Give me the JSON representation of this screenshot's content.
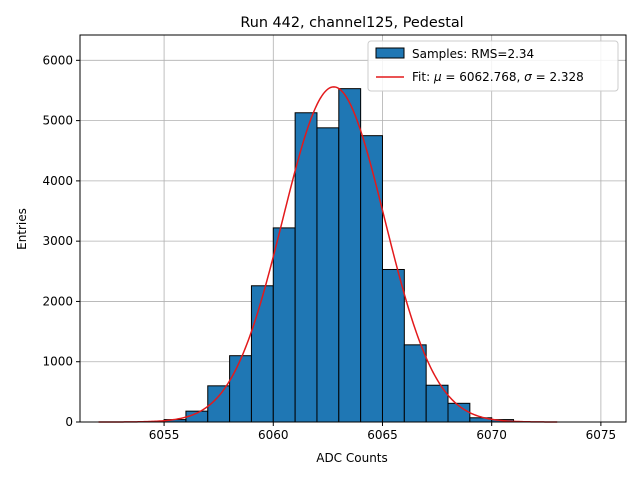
{
  "chart_data": {
    "type": "bar",
    "title": "Run 442, channel125, Pedestal",
    "xlabel": "ADC Counts",
    "ylabel": "Entries",
    "xlim": [
      6051.15,
      6076.15
    ],
    "ylim": [
      0,
      6420
    ],
    "xticks": [
      6055,
      6060,
      6065,
      6070,
      6075
    ],
    "yticks": [
      0,
      1000,
      2000,
      3000,
      4000,
      5000,
      6000
    ],
    "grid": true,
    "legend_position": "top-right",
    "bar_width": 1,
    "bins": [
      {
        "left": 6055,
        "value": 40
      },
      {
        "left": 6056,
        "value": 180
      },
      {
        "left": 6057,
        "value": 600
      },
      {
        "left": 6058,
        "value": 1100
      },
      {
        "left": 6059,
        "value": 2260
      },
      {
        "left": 6060,
        "value": 3220
      },
      {
        "left": 6061,
        "value": 5130
      },
      {
        "left": 6062,
        "value": 4880
      },
      {
        "left": 6063,
        "value": 5530
      },
      {
        "left": 6064,
        "value": 4750
      },
      {
        "left": 6065,
        "value": 2530
      },
      {
        "left": 6066,
        "value": 1280
      },
      {
        "left": 6067,
        "value": 610
      },
      {
        "left": 6068,
        "value": 310
      },
      {
        "left": 6069,
        "value": 70
      },
      {
        "left": 6070,
        "value": 40
      }
    ],
    "fit": {
      "mu": 6062.768,
      "sigma": 2.328,
      "peak": 5560,
      "x_range": [
        6052,
        6073
      ]
    },
    "series": [
      {
        "name": "Samples: RMS=2.34",
        "kind": "histogram",
        "color": "#1f77b4"
      },
      {
        "name_prefix": "Fit: ",
        "name_mu": "μ",
        "name_mu_value": " = 6062.768, ",
        "name_sigma": "σ",
        "name_sigma_value": " = 2.328",
        "kind": "line",
        "color": "#e31a1c"
      }
    ]
  }
}
